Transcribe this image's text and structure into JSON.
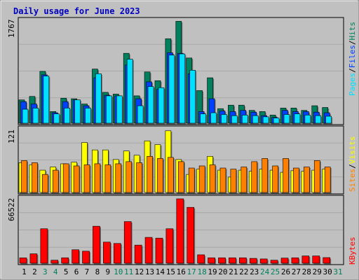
{
  "title": "Daily usage for June 2023",
  "colors": {
    "background": "#ffffff",
    "frame": "#c0c0c0",
    "plot_bg": "#c0c0c0",
    "title": "#0000c0",
    "hits": "#00805c",
    "files": "#0040ff",
    "pages": "#00e0ff",
    "visits": "#ffff00",
    "sites": "#ff8000",
    "kbytes": "#ff0000",
    "day_weekday": "#000000",
    "day_weekend": "#00805c"
  },
  "chart_data": [
    {
      "type": "bar",
      "panel": "hits-files-pages",
      "ymax_label": "1767",
      "ylim": [
        0,
        1767
      ],
      "x": [
        1,
        2,
        3,
        4,
        5,
        6,
        7,
        8,
        9,
        10,
        11,
        12,
        13,
        14,
        15,
        16,
        17,
        18,
        19,
        20,
        21,
        22,
        23,
        24,
        25,
        26,
        27,
        28,
        29,
        30,
        31
      ],
      "series": [
        {
          "name": "Hits",
          "values": [
            400,
            460,
            890,
            200,
            430,
            420,
            330,
            930,
            530,
            500,
            1200,
            470,
            880,
            730,
            1450,
            1750,
            1120,
            560,
            780,
            250,
            310,
            310,
            220,
            200,
            140,
            260,
            260,
            220,
            300,
            270,
            0
          ]
        },
        {
          "name": "Files",
          "values": [
            370,
            330,
            830,
            180,
            370,
            400,
            300,
            780,
            480,
            470,
            1000,
            420,
            710,
            580,
            1210,
            1200,
            850,
            200,
            420,
            210,
            200,
            220,
            190,
            130,
            100,
            220,
            200,
            200,
            190,
            180,
            0
          ]
        },
        {
          "name": "Pages",
          "values": [
            240,
            260,
            810,
            160,
            260,
            400,
            260,
            850,
            470,
            470,
            1100,
            300,
            630,
            610,
            1170,
            1190,
            910,
            160,
            180,
            150,
            130,
            140,
            130,
            110,
            90,
            150,
            160,
            140,
            130,
            120,
            0
          ]
        }
      ]
    },
    {
      "type": "bar",
      "panel": "visits-sites",
      "ymax_label": "121",
      "ylim": [
        0,
        121
      ],
      "x": [
        1,
        2,
        3,
        4,
        5,
        6,
        7,
        8,
        9,
        10,
        11,
        12,
        13,
        14,
        15,
        16,
        17,
        18,
        19,
        20,
        21,
        22,
        23,
        24,
        25,
        26,
        27,
        28,
        29,
        30,
        31
      ],
      "series": [
        {
          "name": "Visits",
          "values": [
            56,
            52,
            42,
            48,
            54,
            57,
            94,
            80,
            80,
            62,
            78,
            70,
            97,
            90,
            116,
            62,
            34,
            44,
            68,
            42,
            29,
            42,
            40,
            44,
            42,
            38,
            41,
            40,
            42,
            44,
            0
          ]
        },
        {
          "name": "Sites",
          "values": [
            60,
            56,
            34,
            42,
            54,
            50,
            52,
            54,
            52,
            54,
            58,
            56,
            68,
            64,
            66,
            58,
            46,
            50,
            52,
            46,
            44,
            48,
            58,
            64,
            50,
            64,
            46,
            48,
            60,
            48,
            0
          ]
        }
      ]
    },
    {
      "type": "bar",
      "panel": "kbytes",
      "ymax_label": "66522",
      "ylim": [
        0,
        66522
      ],
      "x": [
        1,
        2,
        3,
        4,
        5,
        6,
        7,
        8,
        9,
        10,
        11,
        12,
        13,
        14,
        15,
        16,
        17,
        18,
        19,
        20,
        21,
        22,
        23,
        24,
        25,
        26,
        27,
        28,
        29,
        30,
        31
      ],
      "series": [
        {
          "name": "KBytes",
          "values": [
            5500,
            9700,
            35600,
            3100,
            5600,
            13900,
            12400,
            38200,
            21800,
            20400,
            43000,
            18700,
            26700,
            25900,
            35600,
            66522,
            57700,
            8700,
            5600,
            5600,
            5600,
            5600,
            5000,
            4400,
            3100,
            5300,
            5600,
            7500,
            7500,
            5800,
            0
          ]
        }
      ]
    }
  ],
  "legend": {
    "panel1": {
      "hits": "Hits",
      "sep1": "/",
      "files": "Files",
      "sep2": "/",
      "pages": "Pages"
    },
    "panel2": {
      "visits": "Visits",
      "sep": "/",
      "sites": "Sites"
    },
    "panel3": {
      "kbytes": "KBytes"
    }
  },
  "x_ticks": [
    "1",
    "2",
    "3",
    "4",
    "5",
    "6",
    "7",
    "8",
    "9",
    "10",
    "11",
    "12",
    "13",
    "14",
    "15",
    "16",
    "17",
    "18",
    "19",
    "20",
    "21",
    "22",
    "23",
    "24",
    "25",
    "26",
    "27",
    "28",
    "29",
    "30",
    "31"
  ],
  "weekend_days": [
    3,
    4,
    10,
    11,
    17,
    18,
    24,
    25,
    31
  ]
}
